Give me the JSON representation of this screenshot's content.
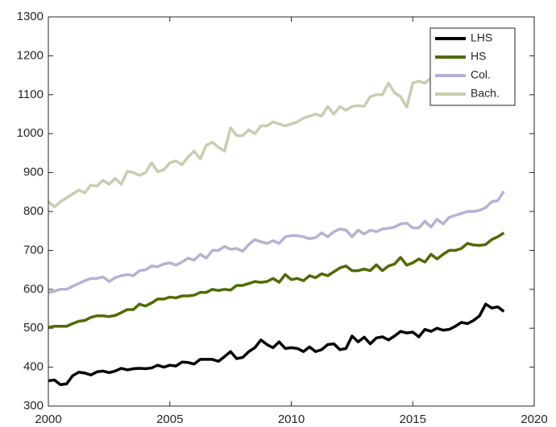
{
  "chart_data": {
    "type": "line",
    "x": [
      2000,
      2000.25,
      2000.5,
      2000.75,
      2001,
      2001.25,
      2001.5,
      2001.75,
      2002,
      2002.25,
      2002.5,
      2002.75,
      2003,
      2003.25,
      2003.5,
      2003.75,
      2004,
      2004.25,
      2004.5,
      2004.75,
      2005,
      2005.25,
      2005.5,
      2005.75,
      2006,
      2006.25,
      2006.5,
      2006.75,
      2007,
      2007.25,
      2007.5,
      2007.75,
      2008,
      2008.25,
      2008.5,
      2008.75,
      2009,
      2009.25,
      2009.5,
      2009.75,
      2010,
      2010.25,
      2010.5,
      2010.75,
      2011,
      2011.25,
      2011.5,
      2011.75,
      2012,
      2012.25,
      2012.5,
      2012.75,
      2013,
      2013.25,
      2013.5,
      2013.75,
      2014,
      2014.25,
      2014.5,
      2014.75,
      2015,
      2015.25,
      2015.5,
      2015.75,
      2016,
      2016.25,
      2016.5,
      2016.75,
      2017,
      2017.25,
      2017.5,
      2017.75,
      2018,
      2018.25,
      2018.5,
      2018.75
    ],
    "series": [
      {
        "name": "LHS",
        "color": "#000000",
        "values": [
          365,
          367,
          355,
          357,
          378,
          387,
          385,
          380,
          388,
          390,
          386,
          390,
          397,
          393,
          396,
          397,
          396,
          398,
          405,
          400,
          405,
          403,
          413,
          412,
          408,
          420,
          420,
          420,
          415,
          427,
          440,
          422,
          425,
          440,
          450,
          470,
          458,
          450,
          465,
          448,
          450,
          448,
          440,
          452,
          440,
          445,
          458,
          460,
          445,
          448,
          480,
          465,
          477,
          460,
          475,
          478,
          470,
          480,
          492,
          488,
          490,
          478,
          497,
          492,
          500,
          495,
          497,
          505,
          515,
          512,
          520,
          532,
          562,
          552,
          555,
          543
        ]
      },
      {
        "name": "HS",
        "color": "#4f6b00",
        "values": [
          502,
          505,
          505,
          505,
          512,
          518,
          520,
          528,
          532,
          532,
          530,
          533,
          540,
          548,
          548,
          562,
          557,
          565,
          575,
          575,
          580,
          578,
          583,
          583,
          585,
          592,
          592,
          600,
          597,
          600,
          598,
          610,
          610,
          615,
          620,
          618,
          620,
          628,
          618,
          638,
          625,
          628,
          622,
          635,
          630,
          640,
          635,
          645,
          655,
          660,
          648,
          648,
          652,
          648,
          663,
          648,
          660,
          665,
          682,
          662,
          668,
          678,
          670,
          690,
          678,
          690,
          700,
          700,
          705,
          718,
          714,
          713,
          715,
          728,
          735,
          745
        ]
      },
      {
        "name": "Col.",
        "color": "#b4b3d4",
        "values": [
          592,
          595,
          600,
          600,
          608,
          615,
          622,
          628,
          628,
          632,
          620,
          630,
          635,
          638,
          635,
          648,
          650,
          660,
          658,
          665,
          668,
          662,
          670,
          680,
          675,
          690,
          680,
          700,
          700,
          710,
          703,
          705,
          698,
          715,
          728,
          722,
          718,
          725,
          718,
          735,
          738,
          738,
          735,
          730,
          733,
          745,
          735,
          748,
          755,
          752,
          735,
          752,
          742,
          752,
          748,
          755,
          757,
          760,
          768,
          770,
          758,
          758,
          775,
          760,
          780,
          768,
          785,
          790,
          795,
          800,
          800,
          803,
          810,
          825,
          828,
          852
        ]
      },
      {
        "name": "Bach.",
        "color": "#c9cdb1",
        "values": [
          825,
          812,
          825,
          835,
          845,
          855,
          848,
          868,
          865,
          880,
          870,
          885,
          870,
          903,
          900,
          893,
          900,
          925,
          902,
          907,
          925,
          930,
          920,
          940,
          955,
          935,
          970,
          978,
          965,
          955,
          1015,
          995,
          995,
          1010,
          1000,
          1020,
          1020,
          1030,
          1025,
          1020,
          1025,
          1030,
          1040,
          1045,
          1050,
          1045,
          1070,
          1050,
          1070,
          1060,
          1070,
          1072,
          1070,
          1095,
          1100,
          1100,
          1130,
          1105,
          1095,
          1068,
          1130,
          1135,
          1130,
          1143,
          null,
          null,
          null,
          null,
          null,
          null,
          null,
          null,
          null,
          null,
          null,
          null
        ]
      }
    ],
    "xlim": [
      2000,
      2020
    ],
    "xticks": [
      2000,
      2005,
      2010,
      2015,
      2020
    ],
    "ylim": [
      300,
      1300
    ],
    "yticks": [
      300,
      400,
      500,
      600,
      700,
      800,
      900,
      1000,
      1100,
      1200,
      1300
    ],
    "legend": "northeast"
  }
}
